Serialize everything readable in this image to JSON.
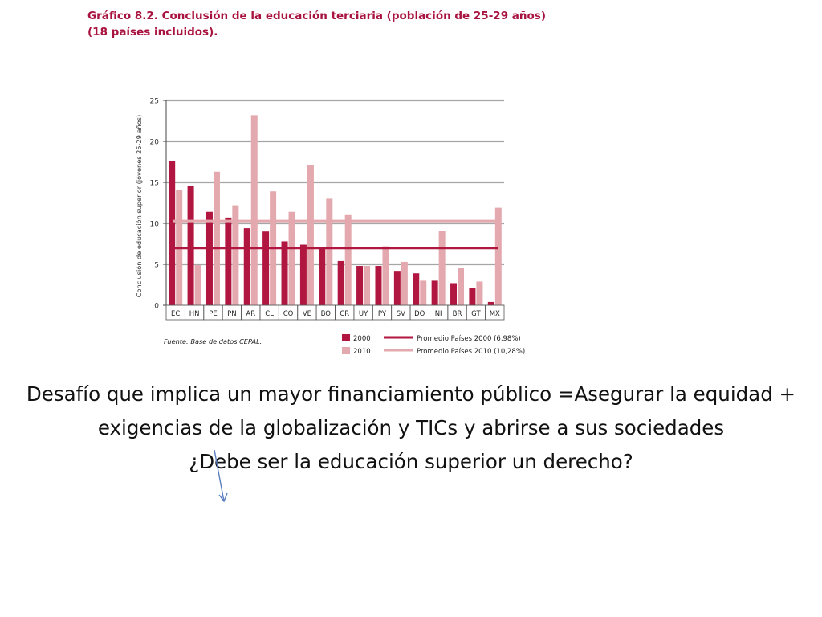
{
  "chart_title": {
    "line1": "Gráfico 8.2. Conclusión de la educación terciaria (población de 25-29 años)",
    "line2": "(18 países incluidos)."
  },
  "colors": {
    "series_2000": "#b0163f",
    "series_2010": "#e3a9ae",
    "grid": "#a6a6a6",
    "title": "#a8133f"
  },
  "chart_data": {
    "type": "bar",
    "ylabel": "Conclusión de educación superior (jóvenes 25-29 años)",
    "ylim": [
      0,
      25
    ],
    "yticks": [
      "0",
      "5",
      "10",
      "15",
      "20",
      "25"
    ],
    "grid": true,
    "categories": [
      "EC",
      "HN",
      "PE",
      "PN",
      "AR",
      "CL",
      "CO",
      "VE",
      "BO",
      "CR",
      "UY",
      "PY",
      "SV",
      "DO",
      "NI",
      "BR",
      "GT",
      "MX"
    ],
    "series": [
      {
        "name": "2000",
        "values": [
          17.6,
          14.6,
          11.4,
          10.7,
          9.4,
          9.0,
          7.8,
          7.4,
          7.1,
          5.4,
          4.8,
          4.8,
          4.2,
          3.9,
          3.0,
          2.7,
          2.1,
          0.4
        ]
      },
      {
        "name": "2010",
        "values": [
          14.1,
          4.9,
          16.3,
          12.2,
          23.2,
          13.9,
          11.4,
          17.1,
          13.0,
          11.1,
          4.8,
          7.2,
          5.3,
          3.0,
          9.1,
          4.6,
          2.9,
          11.9
        ]
      }
    ],
    "reference_lines": [
      {
        "name": "Promedio Países 2000 (6,98%)",
        "value": 6.98
      },
      {
        "name": "Promedio Países 2010 (10,28%)",
        "value": 10.28
      }
    ],
    "legend_position": "bottom-right",
    "source": "Fuente: Base de datos CEPAL."
  },
  "slide": {
    "paragraph1": "Desafío que implica un mayor financiamiento público =Asegurar la equidad + exigencias de la globalización y TICs y abrirse a sus sociedades",
    "paragraph2": "¿Debe ser la educación superior un derecho?"
  }
}
